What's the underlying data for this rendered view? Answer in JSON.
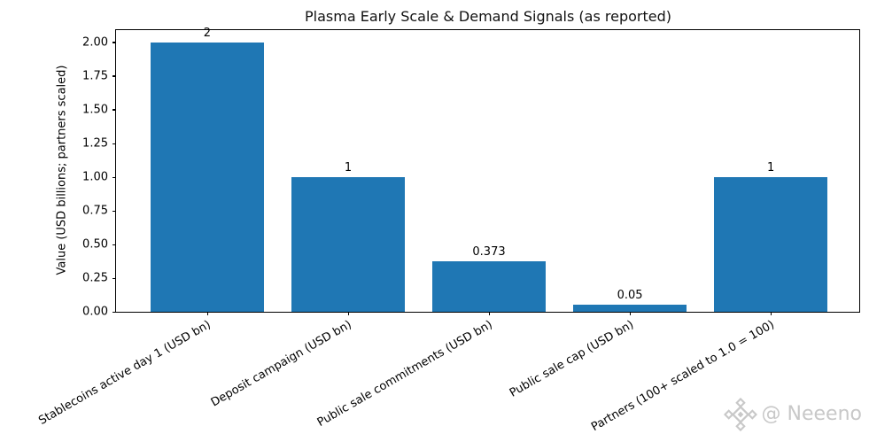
{
  "chart_data": {
    "type": "bar",
    "title": "Plasma Early Scale & Demand Signals (as reported)",
    "xlabel": "",
    "ylabel": "Value (USD billions; partners scaled)",
    "categories": [
      "Stablecoins active day 1 (USD bn)",
      "Deposit campaign (USD bn)",
      "Public sale commitments (USD bn)",
      "Public sale cap (USD bn)",
      "Partners (100+ scaled to 1.0 = 100)"
    ],
    "values": [
      2,
      1,
      0.373,
      0.05,
      1
    ],
    "bar_labels": [
      "2",
      "1",
      "0.373",
      "0.05",
      "1"
    ],
    "yticks": [
      0,
      0.25,
      0.5,
      0.75,
      1,
      1.25,
      1.5,
      1.75,
      2
    ],
    "ytick_labels": [
      "0.00",
      "0.25",
      "0.50",
      "0.75",
      "1.00",
      "1.25",
      "1.50",
      "1.75",
      "2.00"
    ],
    "ylim": [
      0,
      2.09
    ],
    "x_tick_rotation_deg": 30,
    "grid": false,
    "legend": null,
    "bar_color": "#1f77b4",
    "axis_color": "#000000"
  },
  "watermark": {
    "icon": "diamond-gem-icon",
    "text": "@ Neeeno",
    "color": "#c8c8c8"
  }
}
